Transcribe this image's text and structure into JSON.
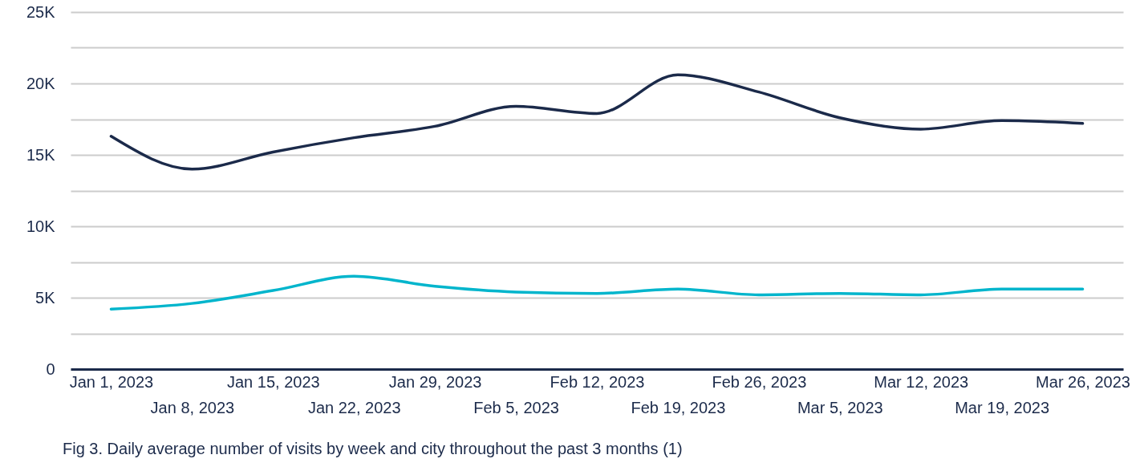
{
  "chart_data": {
    "type": "line",
    "categories": [
      "Jan 1, 2023",
      "Jan 8, 2023",
      "Jan 15, 2023",
      "Jan 22, 2023",
      "Jan 29, 2023",
      "Feb 5, 2023",
      "Feb 12, 2023",
      "Feb 19, 2023",
      "Feb 26, 2023",
      "Mar 5, 2023",
      "Mar 12, 2023",
      "Mar 19, 2023",
      "Mar 26, 2023"
    ],
    "series": [
      {
        "color": "#1b2a4a",
        "values": [
          16300,
          14000,
          15200,
          16200,
          17000,
          18400,
          17900,
          20600,
          19400,
          17600,
          16800,
          17400,
          17200
        ]
      },
      {
        "color": "#00b5cc",
        "values": [
          4200,
          4600,
          5500,
          6500,
          5800,
          5400,
          5300,
          5600,
          5200,
          5300,
          5200,
          5600,
          5600
        ]
      }
    ],
    "ylim": [
      0,
      25000
    ],
    "yticks": [
      {
        "value": 0,
        "label": "0"
      },
      {
        "value": 2500,
        "label": null
      },
      {
        "value": 5000,
        "label": "5K"
      },
      {
        "value": 7500,
        "label": null
      },
      {
        "value": 10000,
        "label": "10K"
      },
      {
        "value": 12500,
        "label": null
      },
      {
        "value": 15000,
        "label": "15K"
      },
      {
        "value": 17500,
        "label": null
      },
      {
        "value": 20000,
        "label": "20K"
      },
      {
        "value": 22500,
        "label": null
      },
      {
        "value": 25000,
        "label": "25K"
      }
    ],
    "grid": true,
    "annotations": [
      "Fig 3. Daily average number of visits by week and city throughout the past 3 months (1)"
    ]
  }
}
